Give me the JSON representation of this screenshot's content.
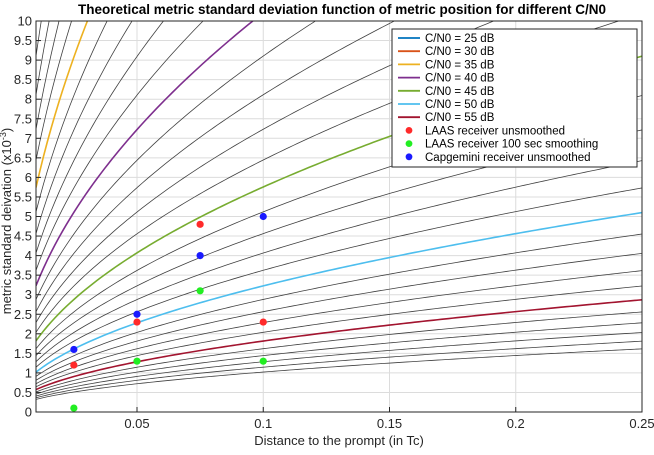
{
  "chart_data": {
    "type": "line",
    "title": "Theoretical metric standard deviation function of metric position for different C/N0",
    "xlabel": "Distance to the prompt (in Tc)",
    "ylabel": "metric standard deivation (x10",
    "ylabel_exponent": "-3",
    "ylabel_suffix": ")",
    "xlim": [
      0.01,
      0.25
    ],
    "ylim": [
      0,
      10
    ],
    "x_ticks": [
      0.05,
      0.1,
      0.15,
      0.2,
      0.25
    ],
    "x_tick_labels": [
      "0.05",
      "0.1",
      "0.15",
      "0.2",
      "0.25"
    ],
    "y_ticks": [
      0,
      0.5,
      1,
      1.5,
      2,
      2.5,
      3,
      3.5,
      4,
      4.5,
      5,
      5.5,
      6,
      6.5,
      7,
      7.5,
      8,
      8.5,
      9,
      9.5,
      10
    ],
    "y_tick_labels": [
      "0",
      "0.5",
      "1",
      "1.5",
      "2",
      "2.5",
      "3",
      "3.5",
      "4",
      "4.5",
      "5",
      "5.5",
      "6",
      "6.5",
      "7",
      "7.5",
      "8",
      "8.5",
      "9",
      "9.5",
      "10"
    ],
    "grid": true,
    "legend_position": "top-right",
    "curve_model": "y = a * sqrt(x)",
    "background_curves": {
      "color": "#404040",
      "cn0_db_from": 24,
      "cn0_db_to": 60,
      "cn0_db_step": 1,
      "a_at_reference": 32.3,
      "reference_cn0_db": 40
    },
    "series": [
      {
        "name": "C/N0 = 25 dB",
        "color": "#0072bd",
        "cn0_db": 25,
        "a": 181.6
      },
      {
        "name": "C/N0 = 30 dB",
        "color": "#d95319",
        "cn0_db": 30,
        "a": 102.1
      },
      {
        "name": "C/N0 = 35 dB",
        "color": "#edb120",
        "cn0_db": 35,
        "a": 57.4
      },
      {
        "name": "C/N0 = 40 dB",
        "color": "#7e2f8e",
        "cn0_db": 40,
        "a": 32.3
      },
      {
        "name": "C/N0 = 45 dB",
        "color": "#77ac30",
        "cn0_db": 45,
        "a": 18.2
      },
      {
        "name": "C/N0 = 50 dB",
        "color": "#4dbeee",
        "cn0_db": 50,
        "a": 10.2
      },
      {
        "name": "C/N0 = 55 dB",
        "color": "#a2142f",
        "cn0_db": 55,
        "a": 5.74
      }
    ],
    "scatter_series": [
      {
        "name": "LAAS receiver unsmoothed",
        "color": "#ff2a2a",
        "points": [
          [
            0.025,
            1.2
          ],
          [
            0.05,
            2.3
          ],
          [
            0.075,
            4.8
          ],
          [
            0.1,
            2.3
          ]
        ]
      },
      {
        "name": "LAAS receiver 100 sec smoothing",
        "color": "#22ee22",
        "points": [
          [
            0.025,
            0.1
          ],
          [
            0.05,
            1.3
          ],
          [
            0.075,
            3.1
          ],
          [
            0.1,
            1.3
          ]
        ]
      },
      {
        "name": "Capgemini receiver unsmoothed",
        "color": "#1a1aff",
        "points": [
          [
            0.025,
            1.6
          ],
          [
            0.05,
            2.5
          ],
          [
            0.075,
            4.0
          ],
          [
            0.1,
            5.0
          ]
        ]
      }
    ]
  }
}
